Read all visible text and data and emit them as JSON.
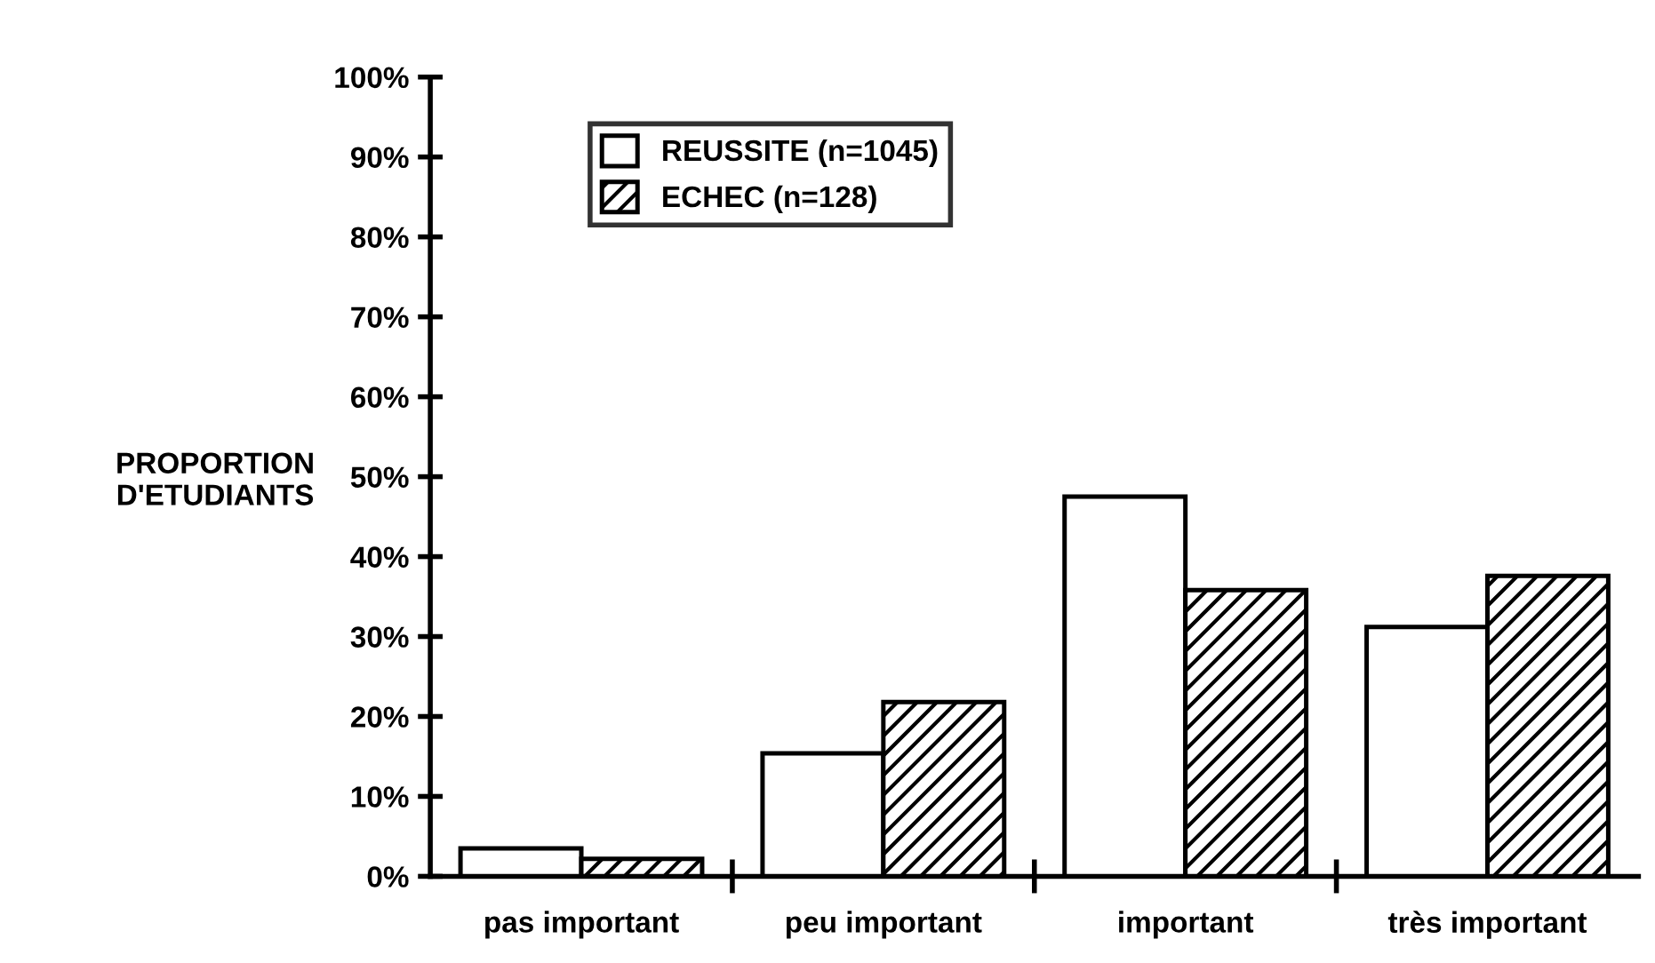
{
  "chart_data": {
    "type": "bar",
    "ylabel": "PROPORTION\nD'ETUDIANTS",
    "categories": [
      "pas important",
      "peu important",
      "important",
      "très important"
    ],
    "series": [
      {
        "name": "REUSSITE (n=1045)",
        "color": "#ffffff",
        "values": [
          3.5,
          15.4,
          47.5,
          31.2
        ]
      },
      {
        "name": "ECHEC (n=128)",
        "color": "#000000",
        "values": [
          2.2,
          21.8,
          35.8,
          37.6
        ]
      }
    ],
    "ylim": [
      0,
      100
    ],
    "yticks": [
      {
        "value": 0,
        "label": "0%"
      },
      {
        "value": 10,
        "label": "10%"
      },
      {
        "value": 20,
        "label": "20%"
      },
      {
        "value": 30,
        "label": "30%"
      },
      {
        "value": 40,
        "label": "40%"
      },
      {
        "value": 50,
        "label": "50%"
      },
      {
        "value": 60,
        "label": "60%"
      },
      {
        "value": 70,
        "label": "70%"
      },
      {
        "value": 80,
        "label": "80%"
      },
      {
        "value": 90,
        "label": "90%"
      },
      {
        "value": 100,
        "label": "100%"
      }
    ],
    "grid": false,
    "legend": "top left"
  }
}
